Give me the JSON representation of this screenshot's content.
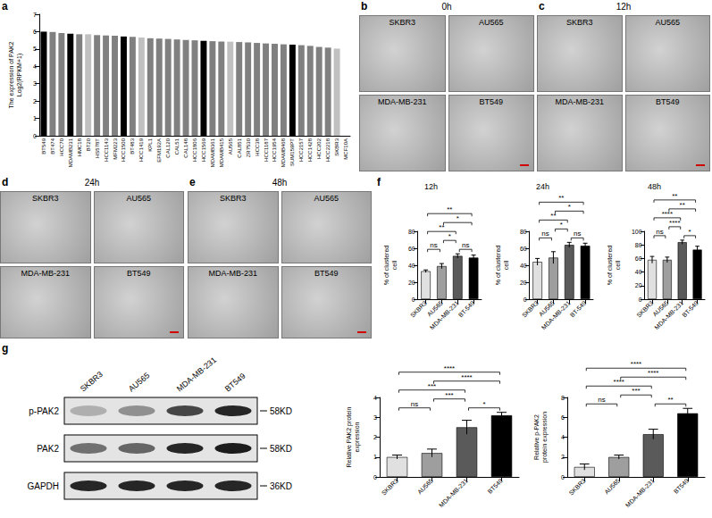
{
  "chart_data": [
    {
      "panel": "a",
      "type": "bar",
      "y_label": [
        "The expression of PAK2",
        "Log2(RPKM+1)"
      ],
      "categories": [
        "BT549",
        "BT474",
        "HCC70",
        "MDAMB231",
        "HMC18",
        "BT20",
        "HS578T",
        "HCC1143",
        "MFM223",
        "HCC1500",
        "BT483",
        "HCC1419",
        "KPL1",
        "EFM192A",
        "CAL120",
        "CAL51",
        "CAL148",
        "HCC1806",
        "HCC1569",
        "MDAMB361",
        "MDAMB415",
        "AU565",
        "CAL851",
        "ZR7530",
        "HCC38",
        "HCC1187",
        "HCC1954",
        "MDAMB468",
        "SUM159PT",
        "HCC2157",
        "HCC1428",
        "HCC202",
        "HCC2218",
        "SKBR3",
        "MCF10A"
      ],
      "values": [
        6.0,
        5.98,
        5.92,
        5.88,
        5.85,
        5.85,
        5.8,
        5.78,
        5.76,
        5.72,
        5.7,
        5.66,
        5.62,
        5.6,
        5.58,
        5.55,
        5.52,
        5.5,
        5.47,
        5.45,
        5.43,
        5.42,
        5.4,
        5.38,
        5.35,
        5.32,
        5.3,
        5.27,
        5.25,
        5.22,
        5.18,
        5.12,
        5.08,
        5.02,
        0
      ],
      "colors": [
        "#000000",
        "#808080",
        "#808080",
        "#000000",
        "#808080",
        "#c0c0c0",
        "#808080",
        "#808080",
        "#808080",
        "#000000",
        "#808080",
        "#c0c0c0",
        "#808080",
        "#808080",
        "#808080",
        "#808080",
        "#808080",
        "#808080",
        "#000000",
        "#808080",
        "#808080",
        "#c0c0c0",
        "#808080",
        "#808080",
        "#808080",
        "#808080",
        "#808080",
        "#808080",
        "#000000",
        "#808080",
        "#808080",
        "#808080",
        "#808080",
        "#c0c0c0",
        "#808080"
      ],
      "ylim": [
        0,
        7
      ],
      "yticks": [
        0,
        1,
        2,
        3,
        4,
        5,
        6,
        7
      ],
      "grid": false
    },
    {
      "panel": "f",
      "type": "bar",
      "title": "12h",
      "y_label": "% of clustered cell",
      "categories": [
        "SKBR3",
        "AU565",
        "MDA-MB-231",
        "BT-549"
      ],
      "values": [
        33,
        39,
        51,
        49
      ],
      "errors": [
        1.5,
        3,
        2.5,
        3
      ],
      "colors": [
        "#e0e0e0",
        "#9e9e9e",
        "#5a5a5a",
        "#000000"
      ],
      "ylim": [
        0,
        80
      ],
      "yticks": [
        0,
        20,
        40,
        60,
        80
      ],
      "grid": false,
      "significance": [
        {
          "between": [
            "SKBR3",
            "AU565"
          ],
          "label": "ns"
        },
        {
          "between": [
            "SKBR3",
            "MDA-MB-231"
          ],
          "label": "**"
        },
        {
          "between": [
            "SKBR3",
            "BT-549"
          ],
          "label": "**"
        },
        {
          "between": [
            "AU565",
            "MDA-MB-231"
          ],
          "label": "*"
        },
        {
          "between": [
            "AU565",
            "BT-549"
          ],
          "label": "*"
        },
        {
          "between": [
            "MDA-MB-231",
            "BT-549"
          ],
          "label": "ns"
        }
      ]
    },
    {
      "type": "bar",
      "title": "24h",
      "y_label": "% of clustered cell",
      "categories": [
        "SKBR3",
        "AU565",
        "MDA-MB-231",
        "BT-549"
      ],
      "values": [
        44,
        49,
        64,
        63
      ],
      "errors": [
        4,
        7,
        3,
        3
      ],
      "colors": [
        "#e0e0e0",
        "#9e9e9e",
        "#5a5a5a",
        "#000000"
      ],
      "ylim": [
        0,
        80
      ],
      "yticks": [
        0,
        20,
        40,
        60,
        80
      ],
      "grid": false,
      "significance": [
        {
          "between": [
            "SKBR3",
            "AU565"
          ],
          "label": "ns"
        },
        {
          "between": [
            "SKBR3",
            "MDA-MB-231"
          ],
          "label": "**"
        },
        {
          "between": [
            "SKBR3",
            "BT-549"
          ],
          "label": "**"
        },
        {
          "between": [
            "AU565",
            "MDA-MB-231"
          ],
          "label": "*"
        },
        {
          "between": [
            "AU565",
            "BT-549"
          ],
          "label": "*"
        },
        {
          "between": [
            "MDA-MB-231",
            "BT-549"
          ],
          "label": "ns"
        }
      ]
    },
    {
      "type": "bar",
      "title": "48h",
      "y_label": "% of clustered cell",
      "categories": [
        "SKBR3",
        "AU565",
        "MDA-MB-231",
        "BT-549"
      ],
      "values": [
        58,
        58,
        84,
        73
      ],
      "errors": [
        5,
        4,
        3,
        5
      ],
      "colors": [
        "#e0e0e0",
        "#9e9e9e",
        "#5a5a5a",
        "#000000"
      ],
      "ylim": [
        0,
        100
      ],
      "yticks": [
        0,
        20,
        40,
        60,
        80,
        100
      ],
      "grid": false,
      "significance": [
        {
          "between": [
            "SKBR3",
            "AU565"
          ],
          "label": "ns"
        },
        {
          "between": [
            "SKBR3",
            "MDA-MB-231"
          ],
          "label": "****"
        },
        {
          "between": [
            "SKBR3",
            "BT-549"
          ],
          "label": "**"
        },
        {
          "between": [
            "AU565",
            "MDA-MB-231"
          ],
          "label": "****"
        },
        {
          "between": [
            "AU565",
            "BT-549"
          ],
          "label": "**"
        },
        {
          "between": [
            "MDA-MB-231",
            "BT-549"
          ],
          "label": "*"
        }
      ]
    },
    {
      "type": "bar",
      "y_label": "Relative PAK2 protein expression",
      "categories": [
        "SKBR3",
        "AU565",
        "MDA-MB-231",
        "BT549"
      ],
      "values": [
        1.0,
        1.2,
        2.5,
        3.1
      ],
      "errors": [
        0.1,
        0.2,
        0.35,
        0.15
      ],
      "colors": [
        "#e0e0e0",
        "#9e9e9e",
        "#5a5a5a",
        "#000000"
      ],
      "ylim": [
        0,
        4
      ],
      "yticks": [
        0,
        1,
        2,
        3,
        4
      ],
      "grid": false,
      "significance": [
        {
          "between": [
            "SKBR3",
            "AU565"
          ],
          "label": "ns"
        },
        {
          "between": [
            "SKBR3",
            "MDA-MB-231"
          ],
          "label": "***"
        },
        {
          "between": [
            "SKBR3",
            "BT549"
          ],
          "label": "****"
        },
        {
          "between": [
            "AU565",
            "MDA-MB-231"
          ],
          "label": "***"
        },
        {
          "between": [
            "AU565",
            "BT549"
          ],
          "label": "****"
        },
        {
          "between": [
            "MDA-MB-231",
            "BT549"
          ],
          "label": "*"
        }
      ]
    },
    {
      "type": "bar",
      "y_label": "Relative p-PAK2 protein expression",
      "categories": [
        "SKBR3",
        "AU565",
        "MDA-MB-231",
        "BT549"
      ],
      "values": [
        1.0,
        2.0,
        4.3,
        6.4
      ],
      "errors": [
        0.3,
        0.2,
        0.5,
        0.5
      ],
      "colors": [
        "#e0e0e0",
        "#9e9e9e",
        "#5a5a5a",
        "#000000"
      ],
      "ylim": [
        0,
        8
      ],
      "yticks": [
        0,
        2,
        4,
        6,
        8
      ],
      "grid": false,
      "significance": [
        {
          "between": [
            "SKBR3",
            "AU565"
          ],
          "label": "ns"
        },
        {
          "between": [
            "SKBR3",
            "MDA-MB-231"
          ],
          "label": "****"
        },
        {
          "between": [
            "SKBR3",
            "BT549"
          ],
          "label": "****"
        },
        {
          "between": [
            "AU565",
            "MDA-MB-231"
          ],
          "label": "***"
        },
        {
          "between": [
            "AU565",
            "BT549"
          ],
          "label": "****"
        },
        {
          "between": [
            "MDA-MB-231",
            "BT549"
          ],
          "label": "**"
        }
      ]
    }
  ],
  "image_panels": [
    {
      "panel": "b",
      "title": "0h",
      "cells": [
        "SKBR3",
        "AU565",
        "MDA-MB-231",
        "BT549"
      ]
    },
    {
      "panel": "c",
      "title": "12h",
      "cells": [
        "SKBR3",
        "AU565",
        "MDA-MB-231",
        "BT549"
      ]
    },
    {
      "panel": "d",
      "title": "24h",
      "cells": [
        "SKBR3",
        "AU565",
        "MDA-MB-231",
        "BT549"
      ]
    },
    {
      "panel": "e",
      "title": "48h",
      "cells": [
        "SKBR3",
        "AU565",
        "MDA-MB-231",
        "BT549"
      ]
    }
  ],
  "blot": {
    "panel": "g",
    "lanes": [
      "SKBR3",
      "AU565",
      "MDA-MB-231",
      "BT549"
    ],
    "rows": [
      {
        "label": "p-PAK2",
        "size": "58KD",
        "intensity": [
          0.25,
          0.4,
          0.75,
          0.9
        ]
      },
      {
        "label": "PAK2",
        "size": "58KD",
        "intensity": [
          0.55,
          0.6,
          0.9,
          0.95
        ]
      },
      {
        "label": "GAPDH",
        "size": "36KD",
        "intensity": [
          0.9,
          0.9,
          0.9,
          0.9
        ]
      }
    ]
  }
}
